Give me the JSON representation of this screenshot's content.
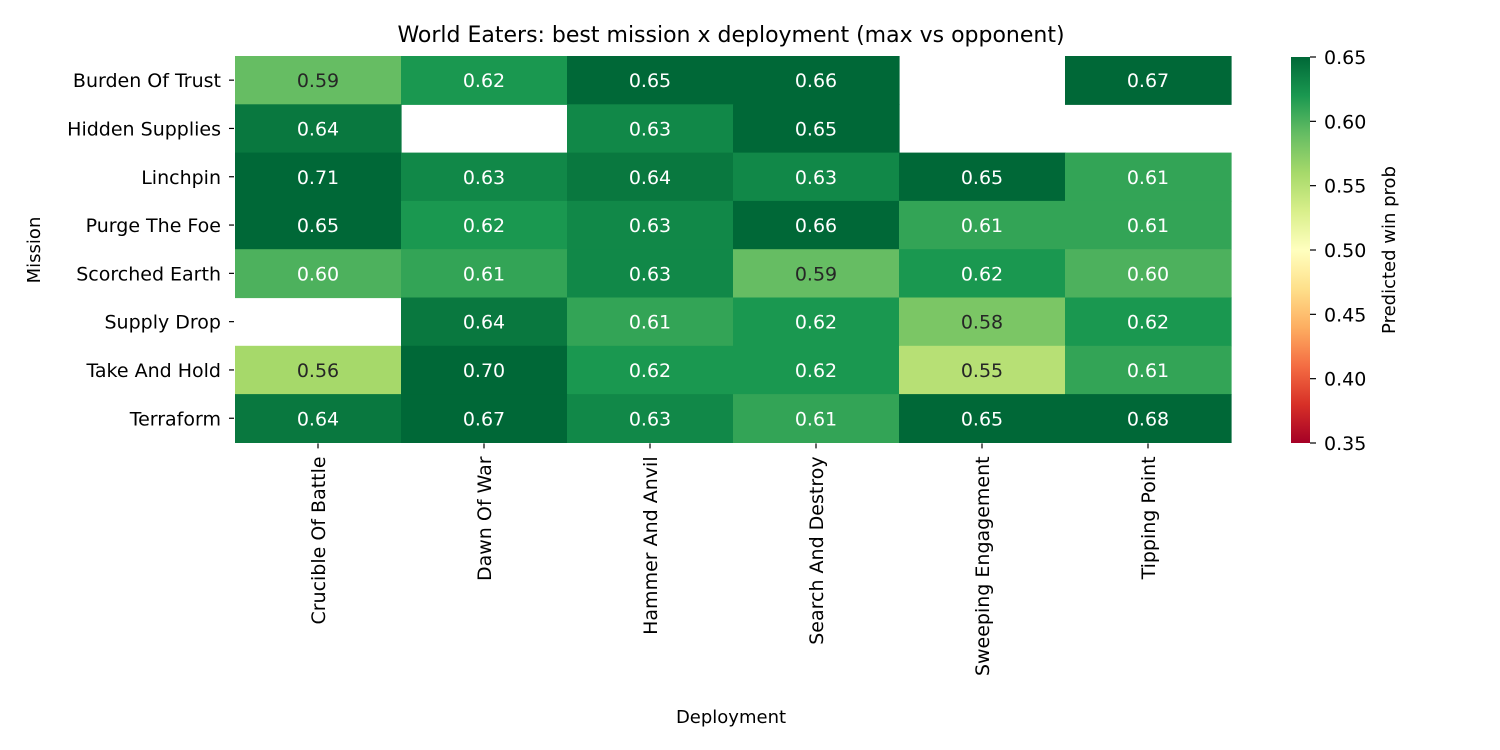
{
  "chart_data": {
    "type": "heatmap",
    "title": "World Eaters: best mission x deployment (max vs opponent)",
    "xlabel": "Deployment",
    "ylabel": "Mission",
    "columns": [
      "Crucible Of Battle",
      "Dawn Of War",
      "Hammer And Anvil",
      "Search And Destroy",
      "Sweeping Engagement",
      "Tipping Point"
    ],
    "rows": [
      "Burden Of Trust",
      "Hidden Supplies",
      "Linchpin",
      "Purge The Foe",
      "Scorched Earth",
      "Supply Drop",
      "Take And Hold",
      "Terraform"
    ],
    "values": [
      [
        0.59,
        0.62,
        0.65,
        0.66,
        null,
        0.67
      ],
      [
        0.64,
        null,
        0.63,
        0.65,
        null,
        null
      ],
      [
        0.71,
        0.63,
        0.64,
        0.63,
        0.65,
        0.61
      ],
      [
        0.65,
        0.62,
        0.63,
        0.66,
        0.61,
        0.61
      ],
      [
        0.6,
        0.61,
        0.63,
        0.59,
        0.62,
        0.6
      ],
      [
        null,
        0.64,
        0.61,
        0.62,
        0.58,
        0.62
      ],
      [
        0.56,
        0.7,
        0.62,
        0.62,
        0.55,
        0.61
      ],
      [
        0.64,
        0.67,
        0.63,
        0.61,
        0.65,
        0.68
      ]
    ],
    "annotation_format": "2 decimals",
    "colormap": "RdYlGn",
    "vmin": 0.35,
    "vmax": 0.65,
    "colorbar": {
      "label": "Predicted win prob",
      "ticks": [
        0.35,
        0.4,
        0.45,
        0.5,
        0.55,
        0.6,
        0.65
      ],
      "tick_labels": [
        "0.35",
        "0.40",
        "0.45",
        "0.50",
        "0.55",
        "0.60",
        "0.65"
      ]
    },
    "grid": false,
    "legend": "colorbar-right"
  }
}
